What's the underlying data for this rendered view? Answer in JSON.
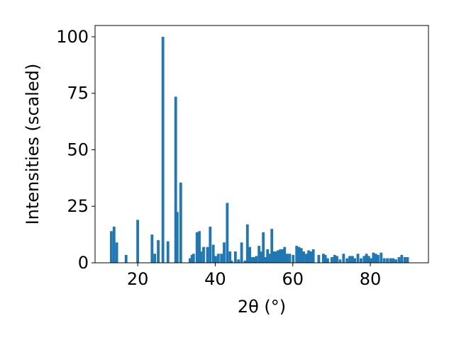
{
  "chart_data": {
    "type": "bar",
    "title": "",
    "xlabel": "2θ (°)",
    "ylabel": "Intensities (scaled)",
    "xlim": [
      9,
      95
    ],
    "ylim": [
      0,
      105
    ],
    "x_ticks": [
      20,
      40,
      60,
      80
    ],
    "y_ticks": [
      0,
      25,
      50,
      75,
      100
    ],
    "grid": false,
    "legend": "none",
    "bar_color": "#1f77b4",
    "bar_width": 0.7,
    "x": [
      13.2,
      13.9,
      14.6,
      17.0,
      20.0,
      23.7,
      24.4,
      25.3,
      26.5,
      27.8,
      29.8,
      30.2,
      31.1,
      33.5,
      34.0,
      34.4,
      35.3,
      35.9,
      36.3,
      37.0,
      38.0,
      38.7,
      39.5,
      40.1,
      40.8,
      41.6,
      42.3,
      43.1,
      43.8,
      44.2,
      45.2,
      46.0,
      46.8,
      47.7,
      48.3,
      48.9,
      49.5,
      50.1,
      50.6,
      51.3,
      51.9,
      52.4,
      52.9,
      53.5,
      54.0,
      54.6,
      55.1,
      55.6,
      56.2,
      56.8,
      57.3,
      57.9,
      58.5,
      59.2,
      60.1,
      61.0,
      61.6,
      62.2,
      62.8,
      63.5,
      64.1,
      64.7,
      65.3,
      66.7,
      67.9,
      68.4,
      69.0,
      70.1,
      70.8,
      71.4,
      72.2,
      73.1,
      74.0,
      74.7,
      75.4,
      76.0,
      76.8,
      77.6,
      78.4,
      79.0,
      79.6,
      80.2,
      80.8,
      81.4,
      82.0,
      82.8,
      83.6,
      84.4,
      85.2,
      85.9,
      86.6,
      87.4,
      88.1,
      88.9,
      89.6
    ],
    "values": [
      14,
      16,
      9,
      3.5,
      19,
      12.5,
      4,
      10,
      100,
      9.5,
      73.5,
      22.5,
      35.5,
      2,
      3.5,
      4,
      13.5,
      14,
      5,
      7,
      7,
      16,
      8,
      3,
      4,
      4,
      9,
      26.5,
      5,
      1,
      5,
      1.5,
      9,
      1,
      17,
      7,
      2.5,
      2.5,
      3,
      7.5,
      5,
      13.5,
      2.5,
      6,
      4,
      15,
      5,
      5,
      5.5,
      6,
      6,
      7,
      4,
      4,
      3.5,
      7.5,
      7,
      6.5,
      5,
      4,
      5.5,
      5,
      6,
      3.5,
      4,
      3.5,
      2,
      2.5,
      3.5,
      3,
      1.5,
      4,
      2,
      3,
      3,
      2,
      4,
      2,
      3,
      4,
      3,
      2,
      4.5,
      4,
      3.5,
      4.5,
      2,
      2,
      2,
      2,
      1.5,
      2.5,
      3.5,
      2.5,
      2.5
    ]
  }
}
